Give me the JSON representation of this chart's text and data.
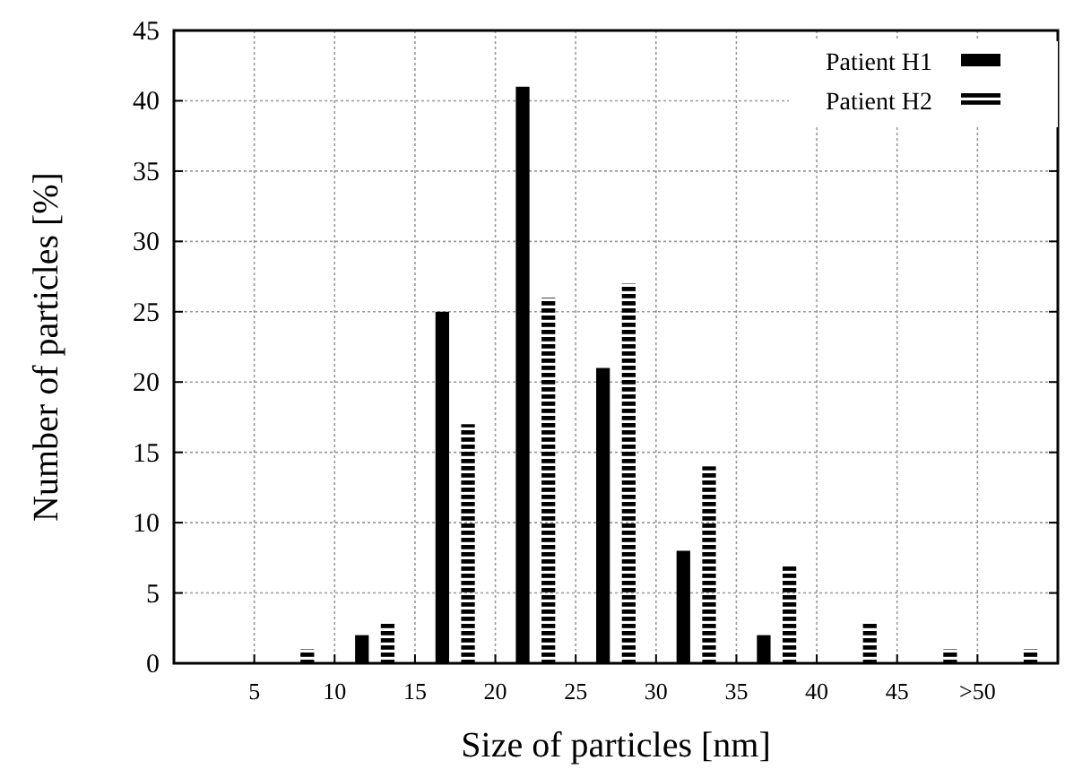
{
  "chart_data": {
    "type": "bar",
    "xlabel": "Size of particles [nm]",
    "ylabel": "Number of particles [%]",
    "x": [
      7.5,
      12.5,
      17.5,
      22.5,
      27.5,
      32.5,
      37.5,
      42.5,
      47.5,
      52.5
    ],
    "series": [
      {
        "name": "Patient H1",
        "color": "#000000",
        "values": [
          0,
          2,
          25,
          41,
          21,
          8,
          2,
          0,
          0,
          0
        ]
      },
      {
        "name": "Patient H2",
        "color": "#000000",
        "values": [
          1,
          3,
          17,
          26,
          27,
          14,
          7,
          3,
          1,
          1
        ]
      }
    ],
    "xlim": [
      0,
      55
    ],
    "xticks": [
      5,
      10,
      15,
      20,
      25,
      30,
      35,
      40,
      45,
      {
        "value": 50,
        "label": ">50"
      }
    ],
    "ylim": [
      0,
      45
    ],
    "yticks": [
      0,
      5,
      10,
      15,
      20,
      25,
      30,
      35,
      40,
      45
    ],
    "grid": true,
    "legend": "top right"
  }
}
